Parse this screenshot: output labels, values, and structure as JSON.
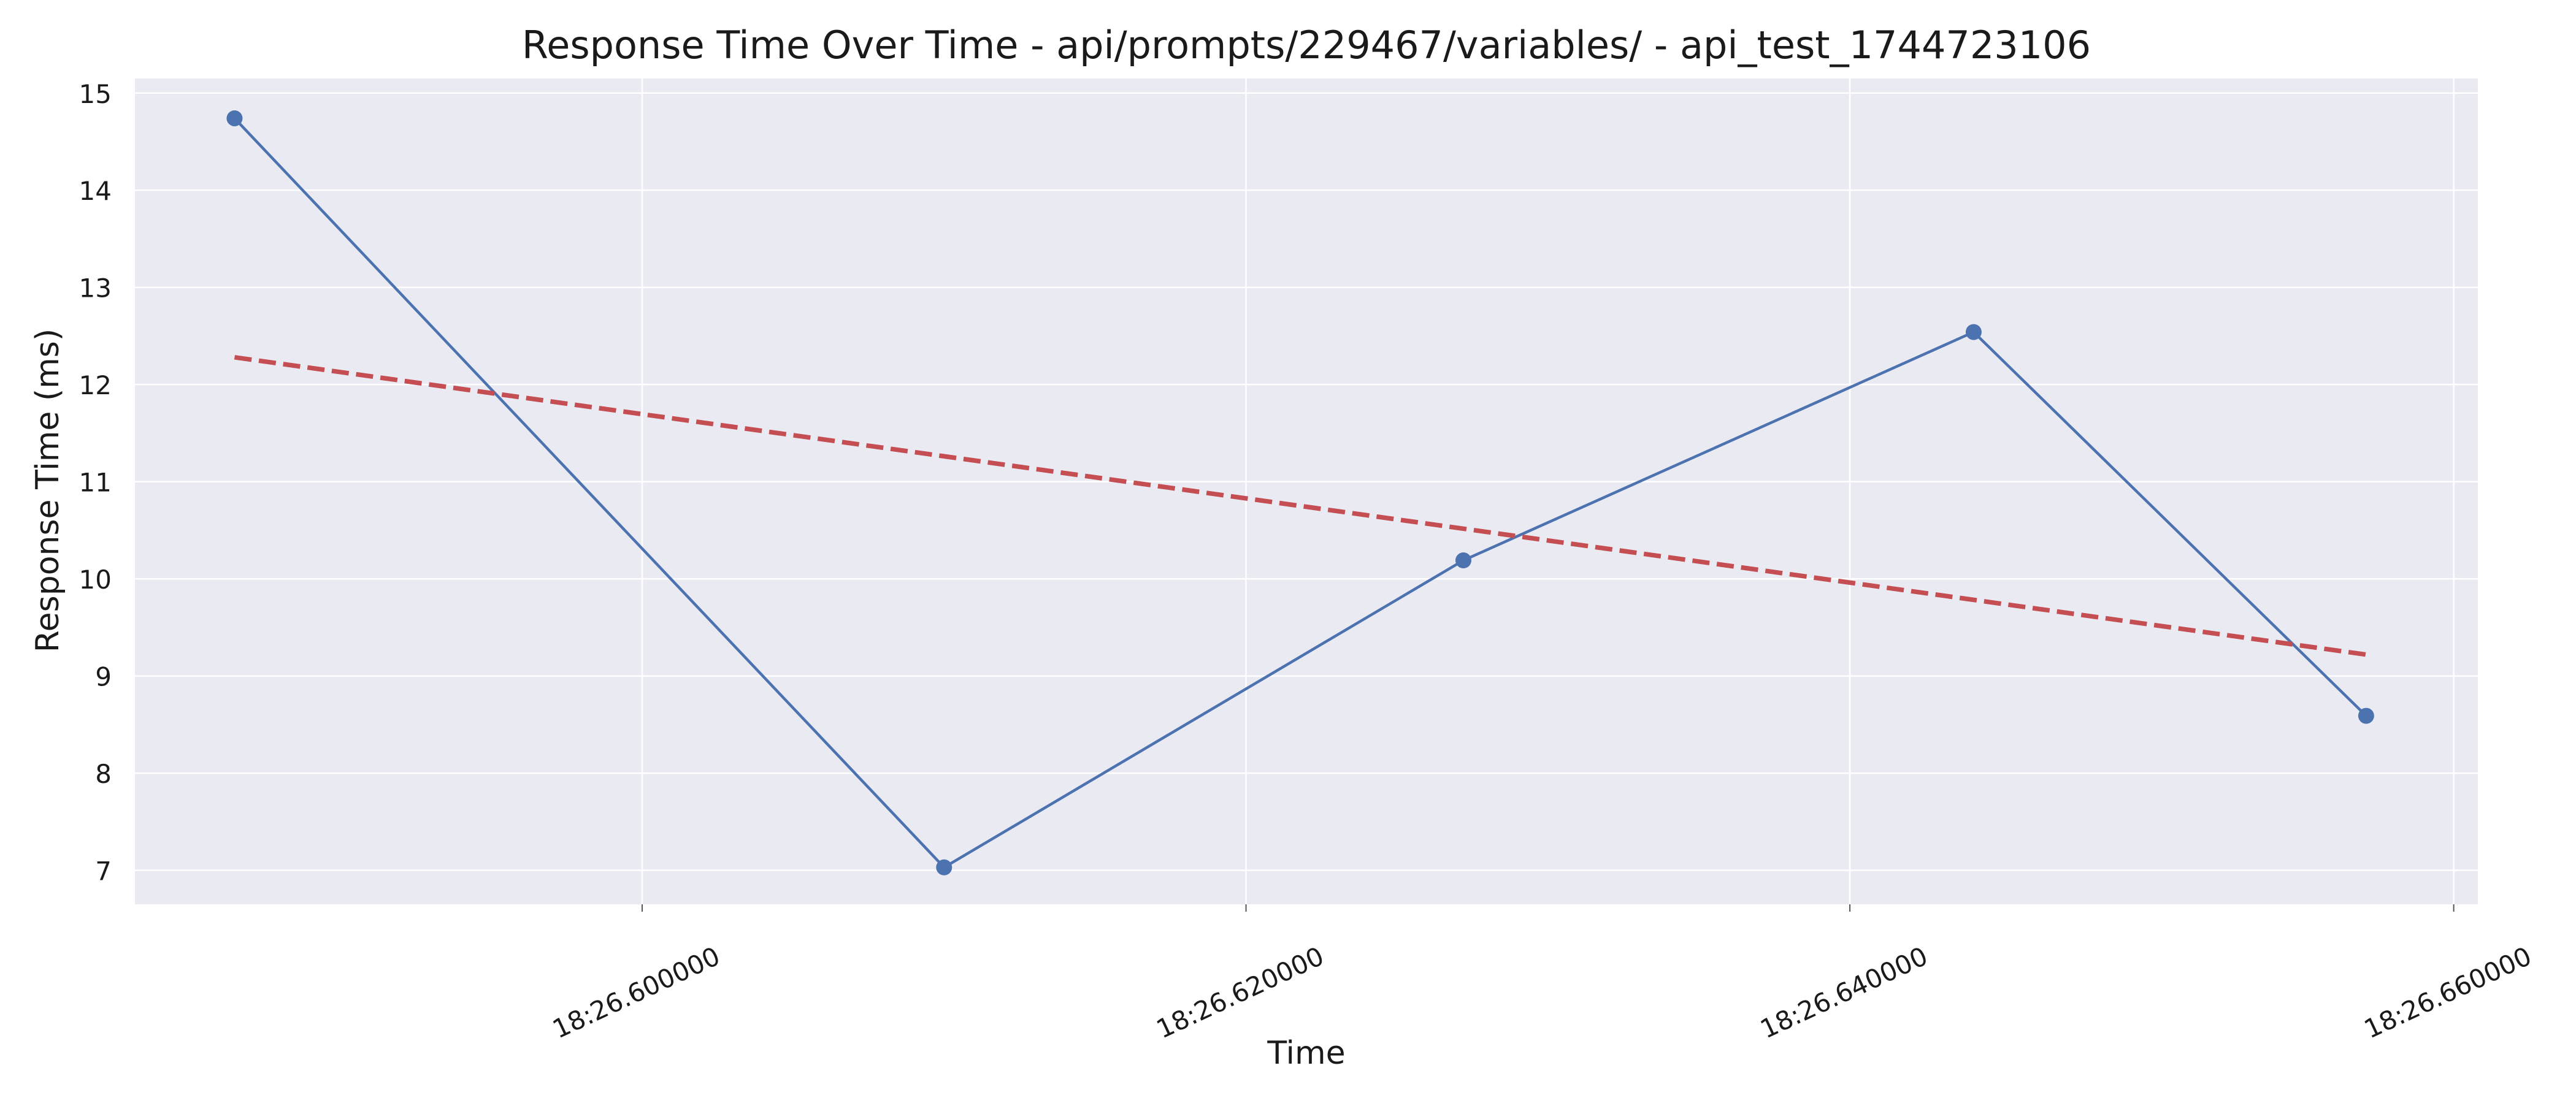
{
  "chart_data": {
    "type": "line",
    "title": "Response Time Over Time - api/prompts/229467/variables/ - api_test_1744723106",
    "xlabel": "Time",
    "ylabel": "Response Time (ms)",
    "x_tick_labels": [
      "18:26.600000",
      "18:26.620000",
      "18:26.640000",
      "18:26.660000"
    ],
    "x_ticks_seconds": [
      26.6,
      26.62,
      26.64,
      26.66
    ],
    "xlim_seconds": [
      26.5832,
      26.6608
    ],
    "ylim": [
      6.65,
      15.15
    ],
    "y_ticks": [
      7,
      8,
      9,
      10,
      11,
      12,
      13,
      14,
      15
    ],
    "grid": true,
    "series": [
      {
        "x_seconds": [
          26.5865,
          26.61,
          26.6272,
          26.6441,
          26.6571
        ],
        "y": [
          14.74,
          7.03,
          10.19,
          12.54,
          8.59
        ],
        "color": "#4c72b0",
        "markers": true
      },
      {
        "x_seconds": [
          26.5865,
          26.6571
        ],
        "y": [
          12.28,
          9.22
        ],
        "color": "#c44e52",
        "dashed": true,
        "markers": false
      }
    ],
    "colors": {
      "plot_background": "#eaeaf2",
      "grid": "#ffffff",
      "page_background": "#ffffff"
    }
  }
}
